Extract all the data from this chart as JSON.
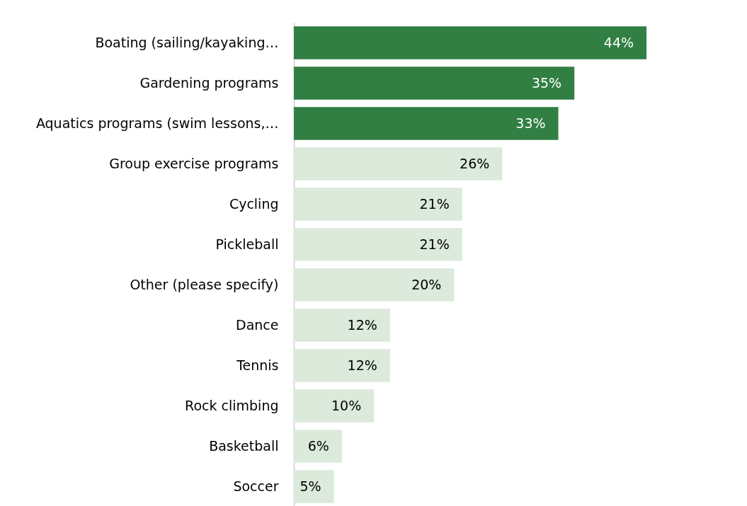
{
  "chart_data": {
    "type": "bar",
    "orientation": "horizontal",
    "categories": [
      "Boating (sailing/kayaking…",
      "Gardening programs",
      "Aquatics programs (swim lessons,…",
      "Group exercise programs",
      "Cycling",
      "Pickleball",
      "Other (please specify)",
      "Dance",
      "Tennis",
      "Rock climbing",
      "Basketball",
      "Soccer"
    ],
    "values": [
      44,
      35,
      33,
      26,
      21,
      21,
      20,
      12,
      12,
      10,
      6,
      5
    ],
    "colors": [
      "#317f43",
      "#317f43",
      "#317f43",
      "#dbeadb",
      "#dbeadb",
      "#dbeadb",
      "#dbeadb",
      "#dbeadb",
      "#dbeadb",
      "#dbeadb",
      "#dbeadb",
      "#dbeadb"
    ],
    "value_labels": [
      "44%",
      "35%",
      "33%",
      "26%",
      "21%",
      "21%",
      "20%",
      "12%",
      "12%",
      "10%",
      "6%",
      "5%"
    ]
  }
}
